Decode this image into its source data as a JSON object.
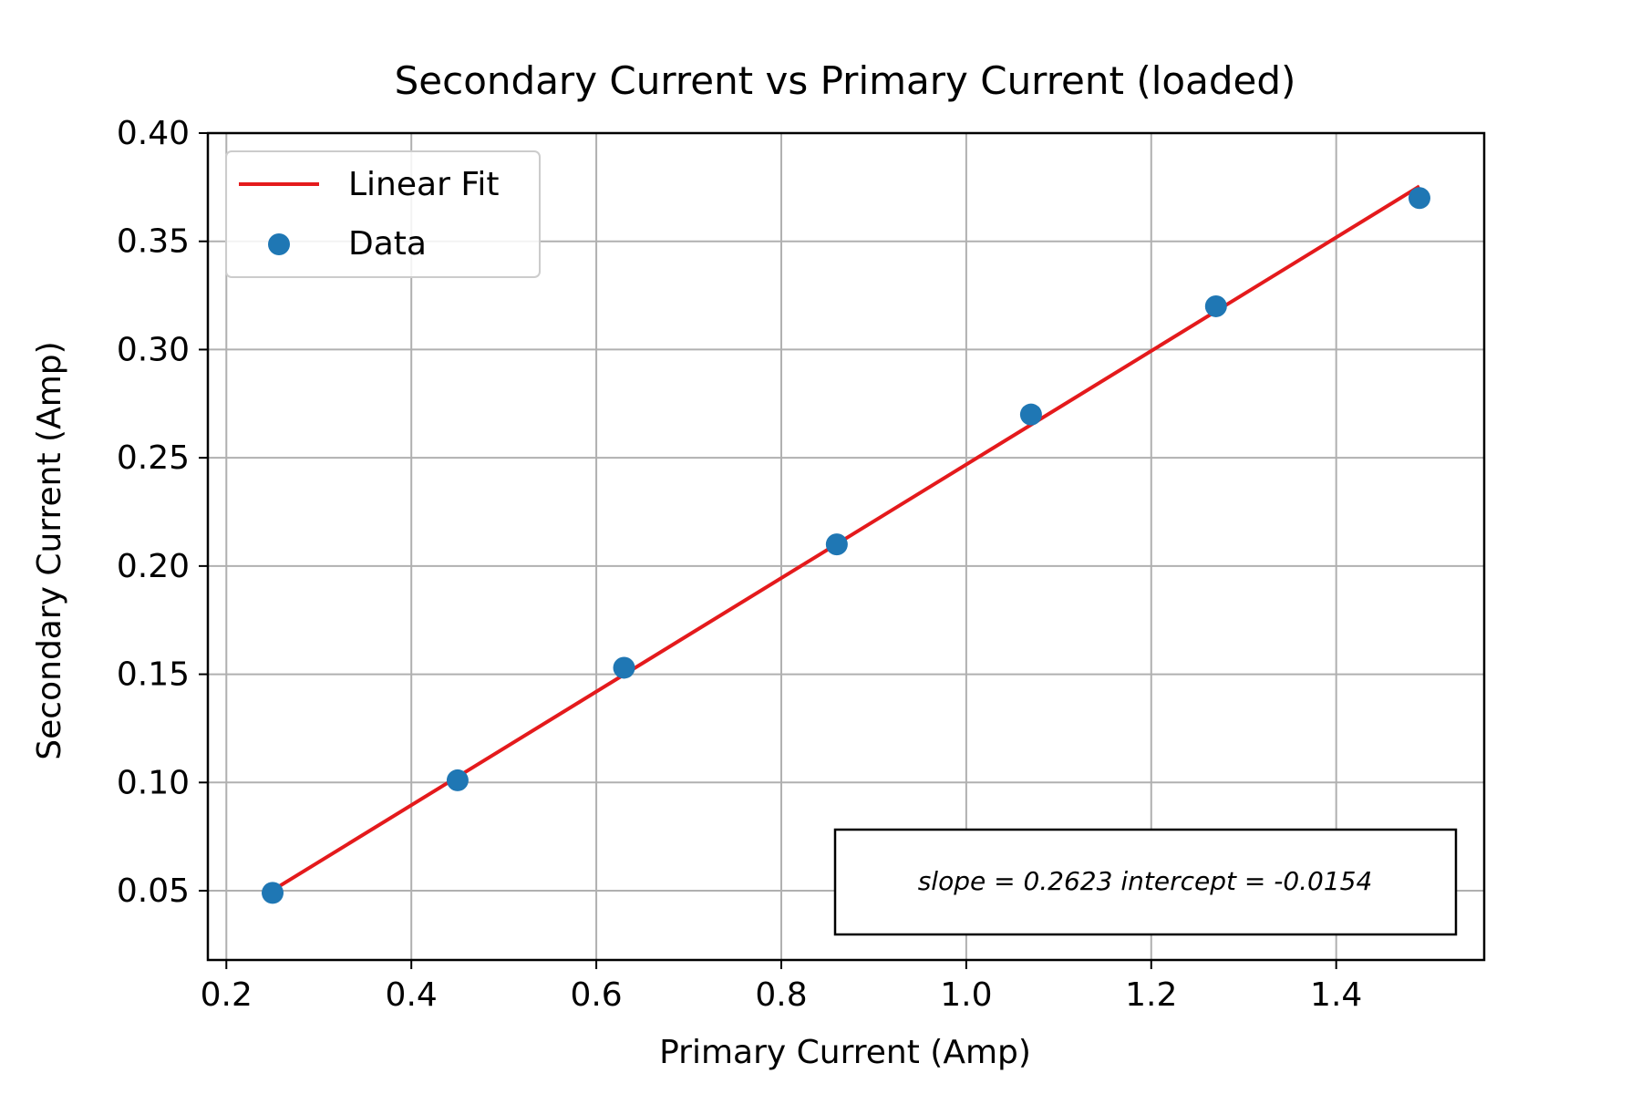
{
  "chart_data": {
    "type": "scatter",
    "title": "Secondary Current vs Primary Current (loaded)",
    "xlabel": "Primary Current (Amp)",
    "ylabel": "Secondary Current (Amp)",
    "xlim": [
      0.18,
      1.56
    ],
    "ylim": [
      0.018,
      0.4
    ],
    "x_ticks": [
      0.2,
      0.4,
      0.6,
      0.8,
      1.0,
      1.2,
      1.4
    ],
    "x_tick_labels": [
      "0.2",
      "0.4",
      "0.6",
      "0.8",
      "1.0",
      "1.2",
      "1.4"
    ],
    "y_ticks": [
      0.05,
      0.1,
      0.15,
      0.2,
      0.25,
      0.3,
      0.35,
      0.4
    ],
    "y_tick_labels": [
      "0.05",
      "0.10",
      "0.15",
      "0.20",
      "0.25",
      "0.30",
      "0.35",
      "0.40"
    ],
    "grid": true,
    "legend_position": "upper-left",
    "series": [
      {
        "name": "Data",
        "kind": "scatter",
        "color": "#1f77b4",
        "x": [
          0.25,
          0.45,
          0.63,
          0.86,
          1.07,
          1.27,
          1.49
        ],
        "y": [
          0.049,
          0.101,
          0.153,
          0.21,
          0.27,
          0.32,
          0.37
        ]
      },
      {
        "name": "Linear Fit",
        "kind": "line",
        "color": "#e41a1c",
        "slope": 0.2623,
        "intercept": -0.0154,
        "x_range": [
          0.25,
          1.49
        ]
      }
    ],
    "annotation": "slope = 0.2623 intercept = -0.0154"
  }
}
